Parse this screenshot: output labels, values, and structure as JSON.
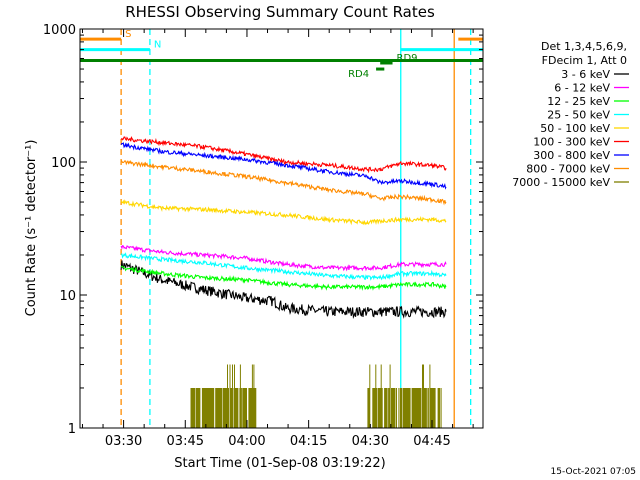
{
  "chart_data": {
    "type": "line",
    "title": "RHESSI Observing Summary Count Rates",
    "xlabel": "Start Time (01-Sep-08 03:19:22)",
    "ylabel": "Count Rate (s⁻¹ detector⁻¹)",
    "y_scale": "log",
    "ylim": [
      1,
      1000
    ],
    "xlim_minutes": [
      0,
      98
    ],
    "x_ticks": [
      {
        "t": 10.6,
        "label": "03:30"
      },
      {
        "t": 25.6,
        "label": "03:45"
      },
      {
        "t": 40.6,
        "label": "04:00"
      },
      {
        "t": 55.6,
        "label": "04:15"
      },
      {
        "t": 70.6,
        "label": "04:30"
      },
      {
        "t": 85.6,
        "label": "04:45"
      }
    ],
    "y_ticks": [
      {
        "v": 1,
        "label": "1"
      },
      {
        "v": 10,
        "label": "10"
      },
      {
        "v": 100,
        "label": "100"
      },
      {
        "v": 1000,
        "label": "1000"
      }
    ],
    "legend_header": [
      "Det 1,3,4,5,6,9,",
      "FDecim 1, Att 0"
    ],
    "series": [
      {
        "name": "3 - 6 keV",
        "color": "#000000",
        "points": [
          [
            10,
            17
          ],
          [
            20,
            13
          ],
          [
            30,
            11
          ],
          [
            40,
            9.5
          ],
          [
            47,
            9
          ],
          [
            50,
            8
          ],
          [
            60,
            7.5
          ],
          [
            70,
            7.5
          ],
          [
            73,
            7.5
          ],
          [
            78,
            7.5
          ],
          [
            86,
            7.5
          ],
          [
            89,
            7.5
          ]
        ]
      },
      {
        "name": "6 - 12 keV",
        "color": "#ff00ff",
        "points": [
          [
            10,
            23
          ],
          [
            20,
            21
          ],
          [
            30,
            20
          ],
          [
            40,
            19
          ],
          [
            50,
            17
          ],
          [
            60,
            16
          ],
          [
            70,
            16
          ],
          [
            73,
            16
          ],
          [
            78,
            17
          ],
          [
            86,
            17
          ],
          [
            89,
            17
          ]
        ]
      },
      {
        "name": "12 - 25 keV",
        "color": "#00ff00",
        "points": [
          [
            10,
            16
          ],
          [
            20,
            14.5
          ],
          [
            30,
            13.5
          ],
          [
            40,
            13
          ],
          [
            50,
            12
          ],
          [
            60,
            11.5
          ],
          [
            70,
            11.5
          ],
          [
            73,
            11.5
          ],
          [
            78,
            12
          ],
          [
            86,
            12
          ],
          [
            89,
            11.5
          ]
        ]
      },
      {
        "name": "25 - 50 keV",
        "color": "#00ffff",
        "points": [
          [
            10,
            20
          ],
          [
            20,
            18.5
          ],
          [
            30,
            17.5
          ],
          [
            40,
            16
          ],
          [
            50,
            15
          ],
          [
            60,
            14
          ],
          [
            70,
            13.5
          ],
          [
            73,
            13.5
          ],
          [
            78,
            14.5
          ],
          [
            86,
            14.5
          ],
          [
            89,
            14
          ]
        ]
      },
      {
        "name": "50 - 100 keV",
        "color": "#ffd700",
        "points": [
          [
            10,
            50
          ],
          [
            20,
            45
          ],
          [
            30,
            44
          ],
          [
            40,
            42
          ],
          [
            50,
            40
          ],
          [
            60,
            37
          ],
          [
            70,
            35
          ],
          [
            73,
            36
          ],
          [
            78,
            37
          ],
          [
            86,
            37
          ],
          [
            89,
            36
          ]
        ]
      },
      {
        "name": "100 - 300 keV",
        "color": "#ff0000",
        "points": [
          [
            10,
            150
          ],
          [
            20,
            140
          ],
          [
            30,
            130
          ],
          [
            40,
            115
          ],
          [
            50,
            100
          ],
          [
            60,
            95
          ],
          [
            70,
            88
          ],
          [
            73,
            88
          ],
          [
            78,
            98
          ],
          [
            86,
            94
          ],
          [
            89,
            90
          ]
        ]
      },
      {
        "name": "300 - 800 keV",
        "color": "#0000ff",
        "points": [
          [
            10,
            135
          ],
          [
            20,
            120
          ],
          [
            30,
            112
          ],
          [
            40,
            105
          ],
          [
            50,
            95
          ],
          [
            60,
            85
          ],
          [
            70,
            78
          ],
          [
            73,
            70
          ],
          [
            78,
            72
          ],
          [
            86,
            68
          ],
          [
            89,
            65
          ]
        ]
      },
      {
        "name": "800 - 7000 keV",
        "color": "#ff8c00",
        "points": [
          [
            10,
            100
          ],
          [
            20,
            92
          ],
          [
            30,
            85
          ],
          [
            40,
            78
          ],
          [
            50,
            70
          ],
          [
            60,
            62
          ],
          [
            70,
            57
          ],
          [
            73,
            53
          ],
          [
            78,
            55
          ],
          [
            86,
            52
          ],
          [
            89,
            50
          ]
        ]
      },
      {
        "name": "7000 - 15000 keV",
        "color": "#808000",
        "points": [
          [
            27,
            2
          ],
          [
            40,
            2
          ],
          [
            43,
            2
          ],
          [
            70,
            2
          ],
          [
            78,
            2
          ],
          [
            86,
            2
          ],
          [
            88,
            2
          ]
        ]
      }
    ],
    "state_bars": [
      {
        "label": "S",
        "color": "#ff8c00",
        "t0": 0,
        "t1": 10,
        "t2": 92,
        "t3": 98,
        "level": 840
      },
      {
        "label": "N",
        "color": "#00ffff",
        "t0": 0,
        "t1": 17,
        "t2": 78,
        "t3": 98,
        "level": 700
      },
      {
        "label": "",
        "color": "#008000",
        "t0": 0,
        "t1": 98,
        "level": 580
      },
      {
        "label": "RD9",
        "color": "#008000",
        "t0": 73,
        "t1": 76,
        "level": 555
      },
      {
        "label": "RD4",
        "color": "#008000",
        "t0": 72,
        "t1": 74,
        "level": 500
      }
    ],
    "vertical_markers": [
      {
        "t": 10,
        "color": "#ff8c00",
        "style": "dashed"
      },
      {
        "t": 17,
        "color": "#00ffff",
        "style": "dashed"
      },
      {
        "t": 78,
        "color": "#00ffff",
        "style": "solid"
      },
      {
        "t": 91,
        "color": "#ff8c00",
        "style": "solid"
      },
      {
        "t": 95,
        "color": "#00ffff",
        "style": "dashed"
      }
    ],
    "footer": "15-Oct-2021 07:05"
  }
}
